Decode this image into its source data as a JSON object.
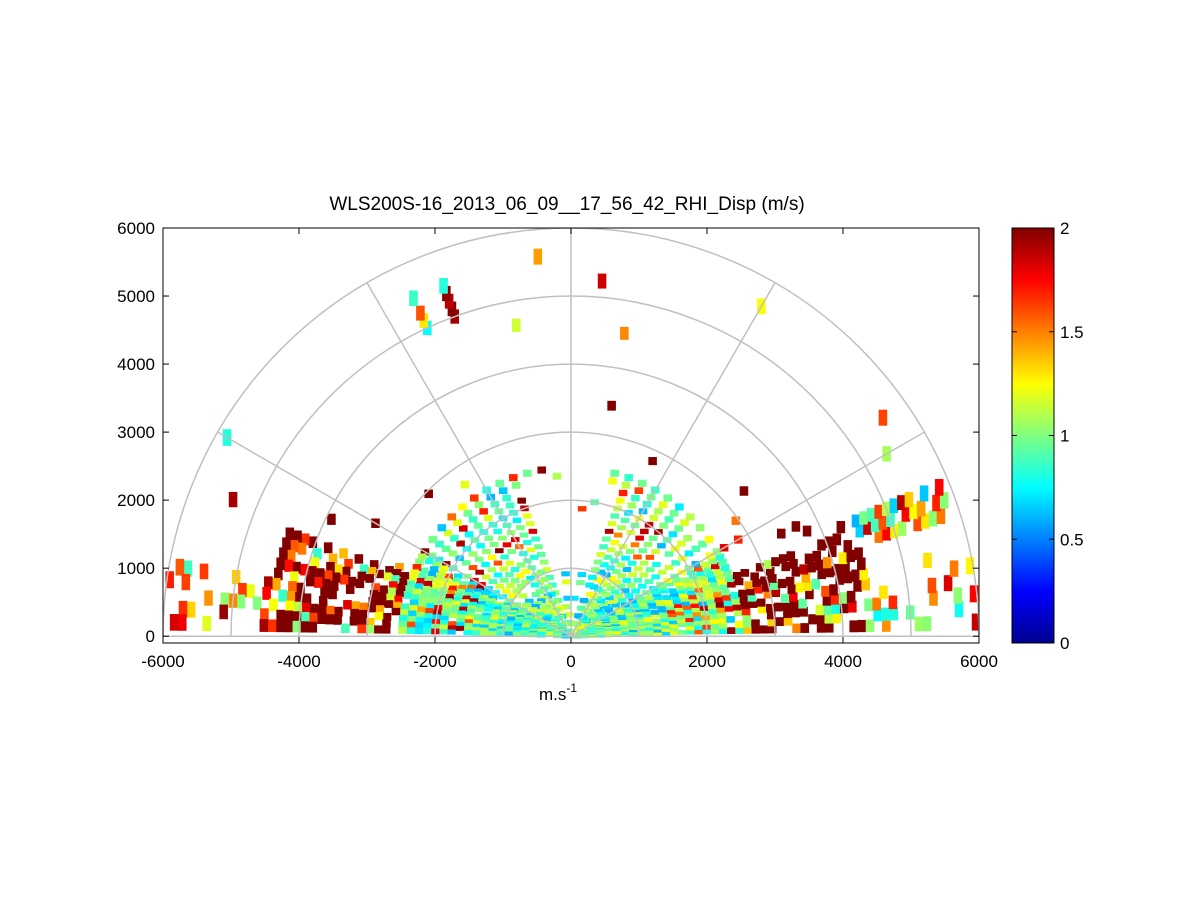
{
  "chart_data": {
    "type": "heatmap",
    "subtype": "polar-rhi-scan",
    "title": "WLS200S-16_2013_06_09__17_56_42_RHI_Disp (m/s)",
    "xlabel": "m.s",
    "xlabel_superscript": "-1",
    "ylabel": "",
    "xlim": [
      -6000,
      6000
    ],
    "ylim": [
      -100,
      6000
    ],
    "xticks": [
      -6000,
      -4000,
      -2000,
      0,
      2000,
      4000,
      6000
    ],
    "yticks": [
      0,
      1000,
      2000,
      3000,
      4000,
      5000,
      6000
    ],
    "polar_grid": {
      "ranges": [
        1000,
        2000,
        3000,
        4000,
        5000,
        6000
      ],
      "spokes_deg": [
        0,
        30,
        60,
        90,
        120,
        150,
        180
      ]
    },
    "colorbar": {
      "colormap": "jet",
      "clim": [
        0,
        2
      ],
      "ticks": [
        0,
        0.5,
        1,
        1.5,
        2
      ]
    },
    "grid": false,
    "field_summary": [
      {
        "region": "near range 0-3000 m, elevation 10-80 deg",
        "typical_value": 0.9
      },
      {
        "region": "band 2500-4500 m, low elevation (both sides)",
        "typical_value": 2.0
      },
      {
        "region": "arc near 5000 m, elevation ~110 deg",
        "typical_value": 1.3
      },
      {
        "region": "arc near 5500 m, elevation ~20 deg",
        "typical_value": 1.0
      }
    ],
    "elevation_angles_deg": [
      2,
      4,
      6,
      8,
      10,
      12,
      14,
      16,
      18,
      20,
      22,
      24,
      26,
      28,
      30,
      35,
      40,
      45,
      50,
      55,
      60,
      65,
      70,
      75,
      80,
      85,
      95,
      100,
      105,
      110,
      115,
      120,
      125,
      130,
      135,
      140,
      145,
      150,
      152,
      154,
      156,
      158,
      160,
      162,
      164,
      166,
      168,
      170,
      172,
      174,
      176,
      178
    ]
  }
}
